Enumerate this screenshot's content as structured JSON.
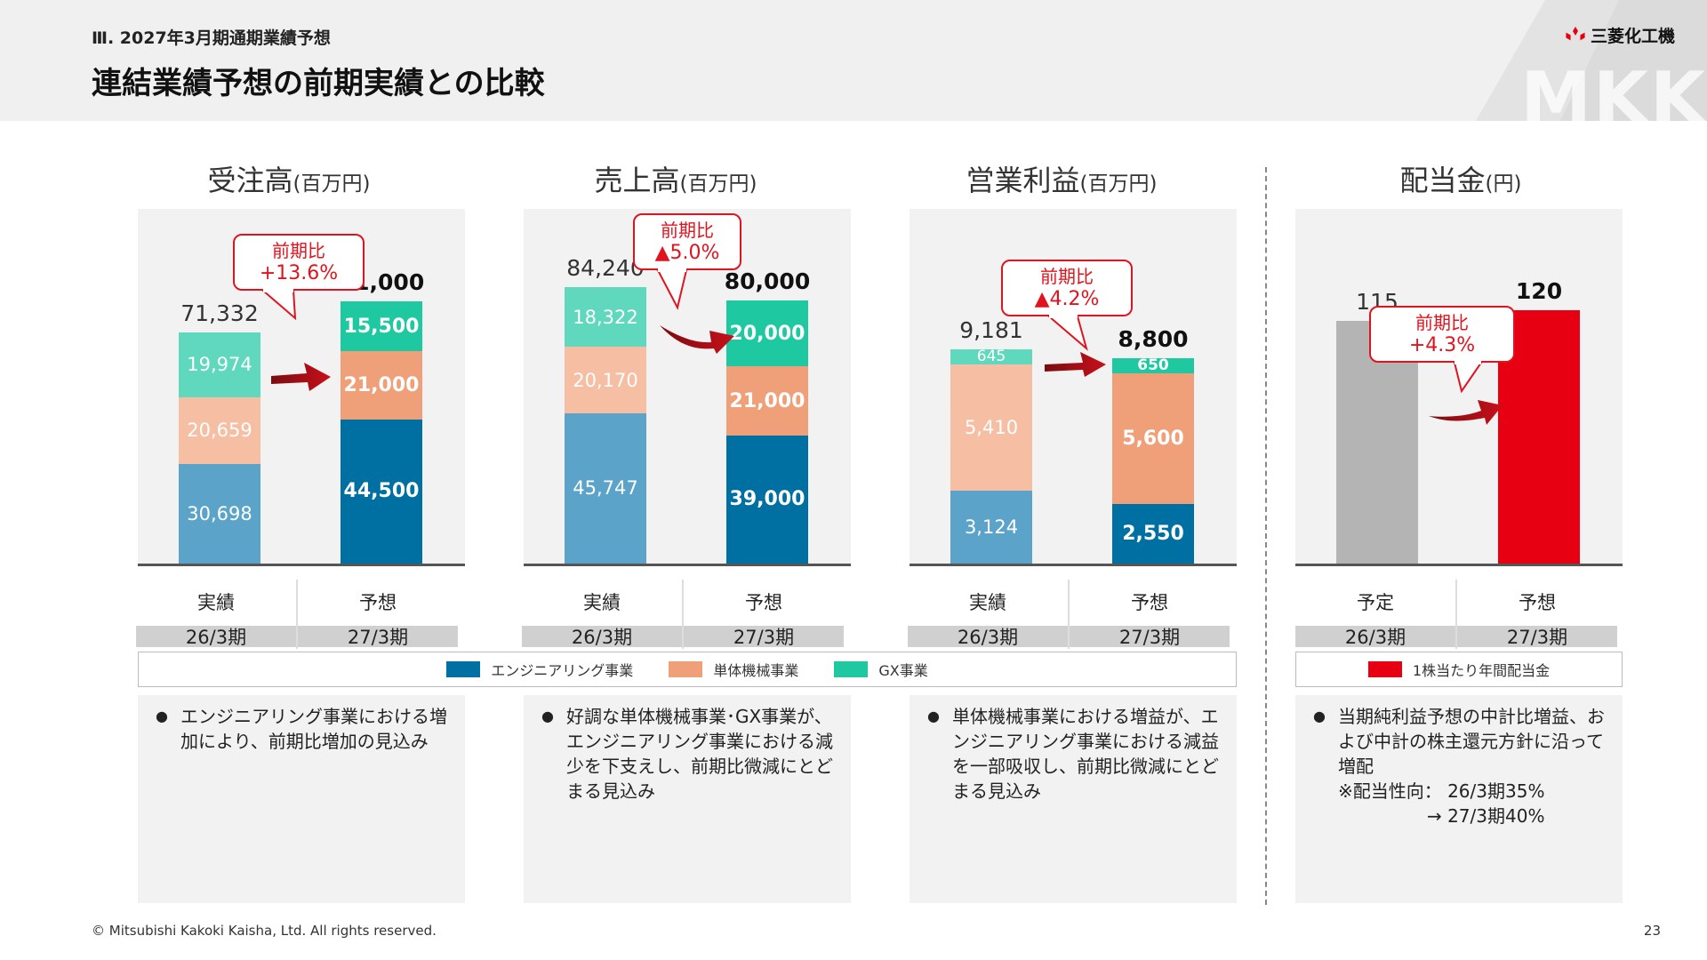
{
  "header": {
    "section_label": "Ⅲ. 2027年3月期通期業績予想",
    "title": "連結業績予想の前期実績との比較",
    "logo_text": "三菱化工機",
    "watermark": "MKK"
  },
  "colors": {
    "engineering": "#006fa1",
    "engineering_light": "#5ba3c9",
    "single_machinery": "#f0a078",
    "single_machinery_light": "#f6bea3",
    "gx": "#1ec8a0",
    "gx_light": "#5fd8bd",
    "dividend_forecast": "#e60012",
    "dividend_plan": "#b4b4b4",
    "callout": "#e0141e"
  },
  "panels": [
    {
      "title": "受注高",
      "unit": "(百万円)",
      "bars": [
        {
          "label": "実績",
          "period": "26/3期",
          "total": "71,332",
          "segments": [
            {
              "series": "エンジニアリング事業",
              "value": 30698,
              "text": "30,698"
            },
            {
              "series": "単体機械事業",
              "value": 20659,
              "text": "20,659"
            },
            {
              "series": "GX事業",
              "value": 19974,
              "text": "19,974"
            }
          ]
        },
        {
          "label": "予想",
          "period": "27/3期",
          "total": "81,000",
          "segments": [
            {
              "series": "エンジニアリング事業",
              "value": 44500,
              "text": "44,500"
            },
            {
              "series": "単体機械事業",
              "value": 21000,
              "text": "21,000"
            },
            {
              "series": "GX事業",
              "value": 15500,
              "text": "15,500"
            }
          ]
        }
      ],
      "callout": {
        "line1": "前期比",
        "line2": "+13.6%"
      },
      "comment": "エンジニアリング事業における増加により、前期比増加の見込み"
    },
    {
      "title": "売上高",
      "unit": "(百万円)",
      "bars": [
        {
          "label": "実績",
          "period": "26/3期",
          "total": "84,240",
          "segments": [
            {
              "series": "エンジニアリング事業",
              "value": 45747,
              "text": "45,747"
            },
            {
              "series": "単体機械事業",
              "value": 20170,
              "text": "20,170"
            },
            {
              "series": "GX事業",
              "value": 18322,
              "text": "18,322"
            }
          ]
        },
        {
          "label": "予想",
          "period": "27/3期",
          "total": "80,000",
          "segments": [
            {
              "series": "エンジニアリング事業",
              "value": 39000,
              "text": "39,000"
            },
            {
              "series": "単体機械事業",
              "value": 21000,
              "text": "21,000"
            },
            {
              "series": "GX事業",
              "value": 20000,
              "text": "20,000"
            }
          ]
        }
      ],
      "callout": {
        "line1": "前期比",
        "line2": "▲5.0%"
      },
      "comment": "好調な単体機械事業･GX事業が、エンジニアリング事業における減少を下支えし、前期比微減にとどまる見込み"
    },
    {
      "title": "営業利益",
      "unit": "(百万円)",
      "bars": [
        {
          "label": "実績",
          "period": "26/3期",
          "total": "9,181",
          "segments": [
            {
              "series": "エンジニアリング事業",
              "value": 3124,
              "text": "3,124"
            },
            {
              "series": "単体機械事業",
              "value": 5410,
              "text": "5,410"
            },
            {
              "series": "GX事業",
              "value": 645,
              "text": "645"
            }
          ]
        },
        {
          "label": "予想",
          "period": "27/3期",
          "total": "8,800",
          "segments": [
            {
              "series": "エンジニアリング事業",
              "value": 2550,
              "text": "2,550"
            },
            {
              "series": "単体機械事業",
              "value": 5600,
              "text": "5,600"
            },
            {
              "series": "GX事業",
              "value": 650,
              "text": "650"
            }
          ]
        }
      ],
      "callout": {
        "line1": "前期比",
        "line2": "▲4.2%"
      },
      "comment": "単体機械事業における増益が、エンジニアリング事業における減益を一部吸収し、前期比微減にとどまる見込み"
    },
    {
      "title": "配当金",
      "unit": "(円)",
      "bars": [
        {
          "label": "予定",
          "period": "26/3期",
          "total": "115",
          "value": 115
        },
        {
          "label": "予想",
          "period": "27/3期",
          "total": "120",
          "value": 120
        }
      ],
      "callout": {
        "line1": "前期比",
        "line2": "+4.3%"
      },
      "comment": "当期純利益予想の中計比増益、および中計の株主還元方針に沿って増配",
      "note1": "※配当性向： 26/3期35%",
      "note2": "→ 27/3期40%"
    }
  ],
  "legend_segments": [
    {
      "label": "エンジニアリング事業",
      "color": "#006fa1"
    },
    {
      "label": "単体機械事業",
      "color": "#f0a078"
    },
    {
      "label": "GX事業",
      "color": "#1ec8a0"
    }
  ],
  "legend_dividend": {
    "label": "1株当たり年間配当金",
    "color": "#e60012"
  },
  "chart_data": [
    {
      "type": "bar",
      "stacked": true,
      "title": "受注高",
      "ylabel": "(百万円)",
      "categories": [
        "26/3期 実績",
        "27/3期 予想"
      ],
      "series": [
        {
          "name": "エンジニアリング事業",
          "values": [
            30698,
            44500
          ]
        },
        {
          "name": "単体機械事業",
          "values": [
            20659,
            21000
          ]
        },
        {
          "name": "GX事業",
          "values": [
            19974,
            15500
          ]
        }
      ],
      "totals": [
        71332,
        81000
      ],
      "annotation": "前期比 +13.6%"
    },
    {
      "type": "bar",
      "stacked": true,
      "title": "売上高",
      "ylabel": "(百万円)",
      "categories": [
        "26/3期 実績",
        "27/3期 予想"
      ],
      "series": [
        {
          "name": "エンジニアリング事業",
          "values": [
            45747,
            39000
          ]
        },
        {
          "name": "単体機械事業",
          "values": [
            20170,
            21000
          ]
        },
        {
          "name": "GX事業",
          "values": [
            18322,
            20000
          ]
        }
      ],
      "totals": [
        84240,
        80000
      ],
      "annotation": "前期比 ▲5.0%"
    },
    {
      "type": "bar",
      "stacked": true,
      "title": "営業利益",
      "ylabel": "(百万円)",
      "categories": [
        "26/3期 実績",
        "27/3期 予想"
      ],
      "series": [
        {
          "name": "エンジニアリング事業",
          "values": [
            3124,
            2550
          ]
        },
        {
          "name": "単体機械事業",
          "values": [
            5410,
            5600
          ]
        },
        {
          "name": "GX事業",
          "values": [
            645,
            650
          ]
        }
      ],
      "totals": [
        9181,
        8800
      ],
      "annotation": "前期比 ▲4.2%"
    },
    {
      "type": "bar",
      "title": "配当金",
      "ylabel": "(円)",
      "categories": [
        "26/3期 予定",
        "27/3期 予想"
      ],
      "series": [
        {
          "name": "1株当たり年間配当金",
          "values": [
            115,
            120
          ]
        }
      ],
      "annotation": "前期比 +4.3%"
    }
  ],
  "footer": {
    "copyright": "© Mitsubishi Kakoki Kaisha, Ltd. All rights reserved.",
    "page": "23"
  }
}
